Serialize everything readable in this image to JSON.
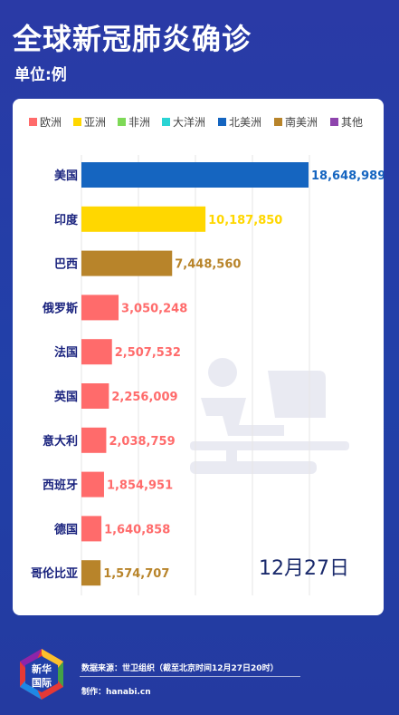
{
  "header": {
    "title": "全球新冠肺炎确诊",
    "unit": "单位:例"
  },
  "chart_data": {
    "type": "bar",
    "orientation": "horizontal",
    "legend": [
      {
        "name": "欧洲",
        "color": "#ff6b6b"
      },
      {
        "name": "亚洲",
        "color": "#ffd700"
      },
      {
        "name": "非洲",
        "color": "#7ed957"
      },
      {
        "name": "大洋洲",
        "color": "#2ad4d4"
      },
      {
        "name": "北美洲",
        "color": "#1565c0"
      },
      {
        "name": "南美洲",
        "color": "#b8842a"
      },
      {
        "name": "其他",
        "color": "#8e44ad"
      }
    ],
    "legend_position": "top",
    "categories": [
      "美国",
      "印度",
      "巴西",
      "俄罗斯",
      "法国",
      "英国",
      "意大利",
      "西班牙",
      "德国",
      "哥伦比亚"
    ],
    "values": [
      18648989,
      10187850,
      7448560,
      3050248,
      2507532,
      2256009,
      2038759,
      1854951,
      1640858,
      1574707
    ],
    "value_labels": [
      "18,648,989",
      "10,187,850",
      "7,448,560",
      "3,050,248",
      "2,507,532",
      "2,256,009",
      "2,038,759",
      "1,854,951",
      "1,640,858",
      "1,574,707"
    ],
    "regions": [
      "北美洲",
      "亚洲",
      "南美洲",
      "欧洲",
      "欧洲",
      "欧洲",
      "欧洲",
      "欧洲",
      "欧洲",
      "南美洲"
    ],
    "xlim": [
      0,
      18648989
    ],
    "grid": true,
    "date_label": "12月27日"
  },
  "footer": {
    "logo_text_1": "新华",
    "logo_text_2": "国际",
    "source": "数据来源：世卫组织（截至北京时间12月27日20时）",
    "maker": "制作：hanabi.cn"
  }
}
